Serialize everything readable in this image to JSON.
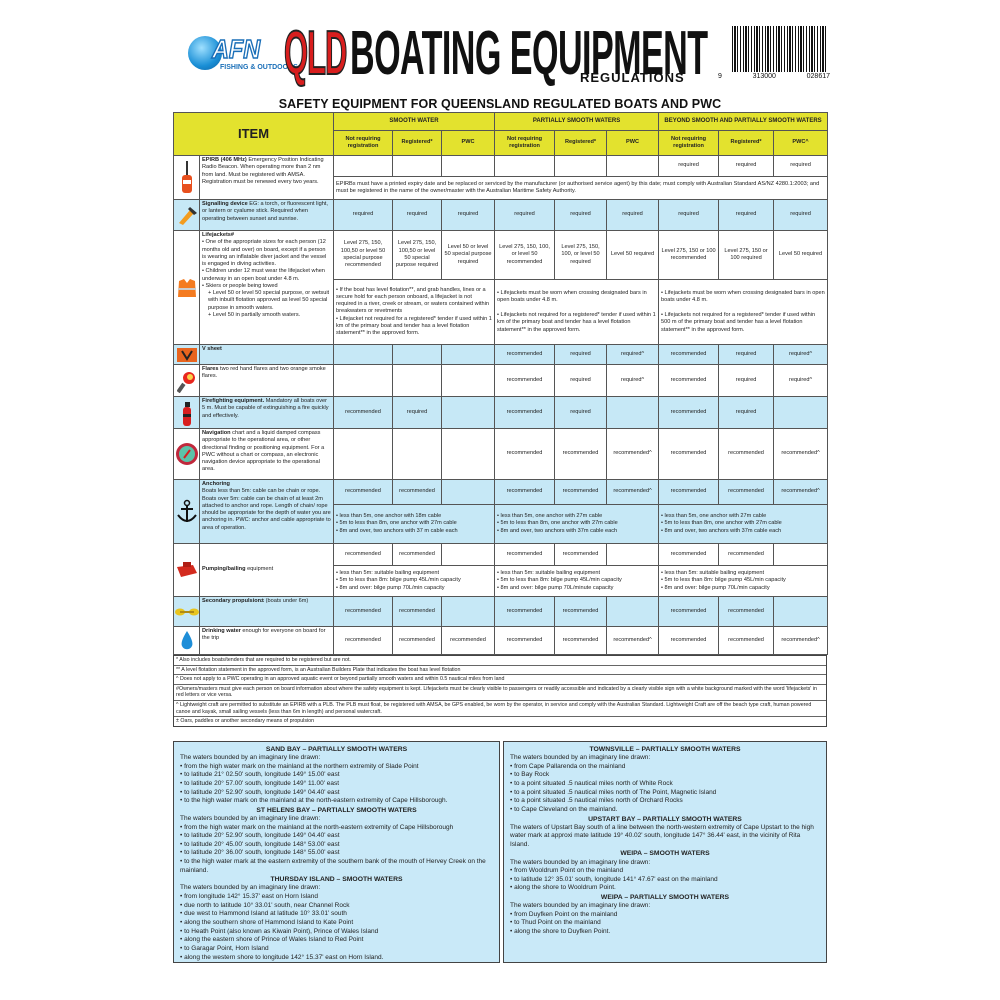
{
  "header": {
    "logo_text": "AFN",
    "logo_sub": "FISHING & OUTDOORS",
    "qld": "QLD",
    "title": "BOATING EQUIPMENT",
    "subtitle": "REGULATIONS",
    "barcode_digits": [
      "9",
      "313000",
      "028617"
    ]
  },
  "section_title": "SAFETY EQUIPMENT FOR QUEENSLAND REGULATED BOATS AND PWC",
  "table": {
    "item_header": "ITEM",
    "groups": [
      "SMOOTH WATER",
      "PARTIALLY SMOOTH WATERS",
      "BEYOND SMOOTH AND PARTIALLY SMOOTH WATERS"
    ],
    "subcols": [
      "Not requiring registration",
      "Registered*",
      "PWC",
      "Not requiring registration",
      "Registered*",
      "PWC",
      "Not requiring registration",
      "Registered*",
      "PWC^"
    ],
    "colors": {
      "header": "#e3e22e",
      "highlight_row": "#c6e8f6"
    },
    "rows": [
      {
        "icon": "epirb-icon",
        "name": "EPIRB (406 MHz)",
        "desc": " Emergency Position Indicating Radio Beacon. When operating more than 2 nm from land. Must be registered with AMSA. Registration must be renewed every two years.",
        "cells": [
          "",
          "",
          "",
          "",
          "",
          "",
          "required",
          "required",
          "required"
        ],
        "notes": [
          "EPIRBs must have a printed expiry date and be replaced or serviced by the manufacturer (or authorised service agent) by this date; must comply with Australian Standard AS/NZ 4280.1:2003; and must be registered in the name of the owner/master with the Australian Maritime Safety Authority."
        ]
      },
      {
        "icon": "torch-icon",
        "blue": true,
        "name": "Signalling device",
        "desc": " EG: a torch, or fluorescent light, or lantern or cyalume stick. Required when operating between sunset and sunrise.",
        "cells": [
          "required",
          "required",
          "required",
          "required",
          "required",
          "required",
          "required",
          "required",
          "required"
        ]
      },
      {
        "icon": "lifejacket-icon",
        "name": "Lifejackets#",
        "desc": "",
        "bullets": [
          "• One of the appropriate sizes for each person (12 months old and over) on board, except if a person is wearing an inflatable diver jacket and the vessel is engaged in diving activities.",
          "• Children under 12 must wear the lifejacket when underway in an open boat under 4.8 m.",
          "• Skiers or people being towed",
          "+ Level 50 or level 50 special purpose, or wetsuit with inbuilt flotation approved as level 50 special purpose in smooth waters.",
          "+ Level 50 in partially smooth waters."
        ],
        "cells": [
          "Level 275, 150, 100,50 or level 50 special purpose recommended",
          "Level 275, 150, 100,50 or level 50 special purpose required",
          "Level 50 or level 50 special purpose required",
          "Level 275, 150, 100, or level 50 recommended",
          "Level 275, 150, 100, or level 50 required",
          "Level 50 required",
          "Level 275, 150 or 100 recommended",
          "Level 275, 150 or 100 required",
          "Level 50 required"
        ],
        "notes": [
          "• If the boat has level flotation**, and grab handles, lines or a secure hold for each person onboard, a lifejacket is not required in a river, creek or stream, or waters contained within breakwaters or revetments\n• Lifejacket not required for a registered* tender if used within 1 km of the primary boat and tender has a level flotation statement** in the approved form.",
          "• Lifejackets must be worn when crossing designated bars in open boats under 4.8 m.\n\n• Lifejackets not required for a registered* tender if used within 1 km of the primary boat and tender has a level flotation statement** in the approved form.",
          "• Lifejackets must be worn when crossing designated bars in open boats under 4.8 m.\n\n• Lifejackets not required for a registered* tender if used within 500 m of the primary boat and tender has a level flotation statement** in the approved form."
        ]
      },
      {
        "icon": "v-sheet-icon",
        "blue": true,
        "name": "V sheet",
        "desc": "",
        "cells": [
          "",
          "",
          "",
          "recommended",
          "required",
          "required^",
          "recommended",
          "required",
          "required^"
        ]
      },
      {
        "icon": "flare-icon",
        "name": "Flares",
        "desc": " two red hand flares and two orange smoke flares.",
        "cells": [
          "",
          "",
          "",
          "recommended",
          "required",
          "required^",
          "recommended",
          "required",
          "required^"
        ]
      },
      {
        "icon": "fire-extinguisher-icon",
        "blue": true,
        "name": "Firefighting equipment.",
        "desc": " Mandatory all boats over 5 m. Must be capable of extinguishing a fire quickly and effectively.",
        "cells": [
          "recommended",
          "required",
          "",
          "recommended",
          "required",
          "",
          "recommended",
          "required",
          ""
        ]
      },
      {
        "icon": "compass-icon",
        "name": "Navigation",
        "desc": " chart and a liquid damped compass appropriate to the operational area, or other directional finding or positioning equipment. For a PWC without a chart or compass, an electronic navigation device appropriate to the operational area.",
        "cells": [
          "",
          "",
          "",
          "recommended",
          "recommended",
          "recommended^",
          "recommended",
          "recommended",
          "recommended^"
        ]
      },
      {
        "icon": "anchor-icon",
        "blue": true,
        "name": "Anchoring",
        "desc": "",
        "bullets": [
          "Boats less than 5m: cable can be chain or rope. Boats over 5m: cable can be chain of at least 2m attached to anchor and rope. Length of chain/ rope should be appropriate for the depth of water you are anchoring in. PWC: anchor and cable appropriate to area of operation."
        ],
        "cells": [
          "recommended",
          "recommended",
          "",
          "recommended",
          "recommended",
          "recommended^",
          "recommended",
          "recommended",
          "recommended^"
        ],
        "notes": [
          "• less than 5m, one anchor with 18m cable\n• 5m to less than 8m, one anchor with 27m cable\n• 8m and over, two anchors with 37 m cable each",
          "• less than 5m, one anchor with 27m cable\n• 5m to less than 8m, one anchor with 27m cable\n• 8m and over, two anchors with 37m cable each",
          "• less than 5m, one anchor with 27m cable\n• 5m to less than 8m, one anchor with 27m cable\n• 8m and over, two anchors with 37m cable each"
        ]
      },
      {
        "icon": "bailer-icon",
        "name": "Pumping/bailing",
        "desc": " equipment",
        "cells": [
          "recommended",
          "recommended",
          "",
          "recommended",
          "recommended",
          "",
          "recommended",
          "recommended",
          ""
        ],
        "notes": [
          "• less than 5m: suitable bailing equipment\n• 5m to less than 8m: bilge pump 45L/min capacity\n• 8m and over: bilge pump 70L/min capacity",
          "• less than 5m: suitable bailing equipment\n• 5m to less than 8m: bilge pump 45L/min capacity\n• 8m and over: bilge pump 70L/minute capacity",
          "• less than 5m: suitable bailing equipment\n• 5m to less than 8m: bilge pump 45L/min capacity\n• 8m and over: bilge pump 70L/min capacity"
        ]
      },
      {
        "icon": "paddle-icon",
        "blue": true,
        "name": "Secondary propulsion±",
        "desc": " (boats under 6m)",
        "cells": [
          "recommended",
          "recommended",
          "",
          "recommended",
          "recommended",
          "",
          "recommended",
          "recommended",
          ""
        ]
      },
      {
        "icon": "water-drop-icon",
        "name": "Drinking water",
        "desc": " enough for everyone on board for the trip",
        "cells": [
          "recommended",
          "recommended",
          "recommended",
          "recommended",
          "recommended",
          "recommended^",
          "recommended",
          "recommended",
          "recommended^"
        ]
      }
    ]
  },
  "footnotes": [
    "* Also includes boats/tenders that are required to be registered but are not.",
    "** A level flotation statement in the approved form, is an Australian Builders Plate that indicates the boat has level flotation",
    "^ Does not apply to a PWC operating in an approved aquatic event or beyond partially smooth waters and within 0.5 nautical miles from land",
    "#Owners/masters must give each person on board information about where the safety equipment is kept. Lifejackets must be clearly visible to passengers or readily accessible  and indicated by a clearly visible sign with a white background marked with the word 'lifejackets' in red letters or vice versa.",
    "^ Lightweight craft are permitted to substitute an EPIRB with a PLB. The PLB must float, be registered with AMSA, be GPS enabled, be worn by the operator, in service and comply with the Australian Standard. Lightweight Craft are off the beach type craft, human powered canoe and kayak, small sailing vessels (less than 6m in length) and personal watercraft.",
    "± Oars, paddles or another secondary means of propulsion"
  ],
  "boxes": [
    {
      "sections": [
        {
          "title": "SAND BAY – PARTIALLY SMOOTH WATERS",
          "lines": [
            "The waters bounded by an imaginary line drawn:",
            "• from the high water mark on the mainland at the northern extremity of Slade Point",
            "• to latitude 21° 02.50' south, longitude 149° 15.00' east",
            "• to latitude 20° 57.00' south, longitude 149° 11.00' east",
            "• to latitude 20° 52.90' south, longitude 149° 04.40' east",
            "• to the high water mark on the mainland at the north-eastern extremity of Cape Hillsborough."
          ]
        },
        {
          "title": "ST HELENS BAY – PARTIALLY SMOOTH WATERS",
          "lines": [
            "The waters bounded by an imaginary line drawn:",
            "• from the high water mark on the mainland at the north-eastern extremity of Cape Hillsborough",
            "• to latitude 20° 52.90' south, longitude 149° 04.40' east",
            "• to latitude 20° 45.00' south, longitude 148° 53.00' east",
            "• to latitude 20° 36.00' south, longitude 148° 55.00' east",
            "• to the high water mark at the eastern extremity of the southern bank of the mouth of Hervey Creek on the mainland."
          ]
        },
        {
          "title": "THURSDAY ISLAND – SMOOTH WATERS",
          "lines": [
            "The waters bounded by an imaginary line drawn:",
            "• from longitude 142° 15.37' east on Horn Island",
            "• due north to latitude 10° 33.01' south, near Channel Rock",
            "• due west to Hammond Island at latitude 10° 33.01' south",
            "• along the southern shore of Hammond Island to Kate Point",
            "• to Heath Point (also known as Kiwain Point), Prince of Wales Island",
            "• along the eastern shore of Prince of Wales Island to Red Point",
            "• to Garagar Point, Horn Island",
            "• along the western shore to longitude 142° 15.37' east on Horn Island."
          ]
        }
      ]
    },
    {
      "sections": [
        {
          "title": "TOWNSVILLE – PARTIALLY SMOOTH WATERS",
          "lines": [
            "The waters bounded by an imaginary line drawn:",
            "• from Cape Pallarenda on the mainland",
            "• to Bay Rock",
            "• to a point situated .5 nautical miles north of White Rock",
            "• to a point situated .5 nautical miles north of The Point, Magnetic Island",
            "• to a point situated .5 nautical miles north of Orchard Rocks",
            "• to Cape Cleveland on the mainland."
          ]
        },
        {
          "title": "UPSTART BAY – PARTIALLY SMOOTH WATERS",
          "lines": [
            "The waters of Upstart Bay south of a line between the north-western extremity of Cape Upstart to the high water mark at approxi mate latitude 19° 40.02' south, longitude 147° 36.44' east, in the vicinity of Rita Island."
          ]
        },
        {
          "title": "WEIPA – SMOOTH WATERS",
          "lines": [
            "The waters bounded by an imaginary line drawn:",
            "• from Wooldrum Point on the mainland",
            "• to latitude 12° 35.01' south, longitude 141° 47.67' east on the mainland",
            "• along the shore to Wooldrum Point."
          ]
        },
        {
          "title": "WEIPA – PARTIALLY SMOOTH WATERS",
          "lines": [
            "The waters bounded by an imaginary line drawn:",
            "• from Duyfken Point on the mainland",
            "• to Thud Point on the mainland",
            "• along the shore to Duyfken Point."
          ]
        }
      ]
    }
  ]
}
